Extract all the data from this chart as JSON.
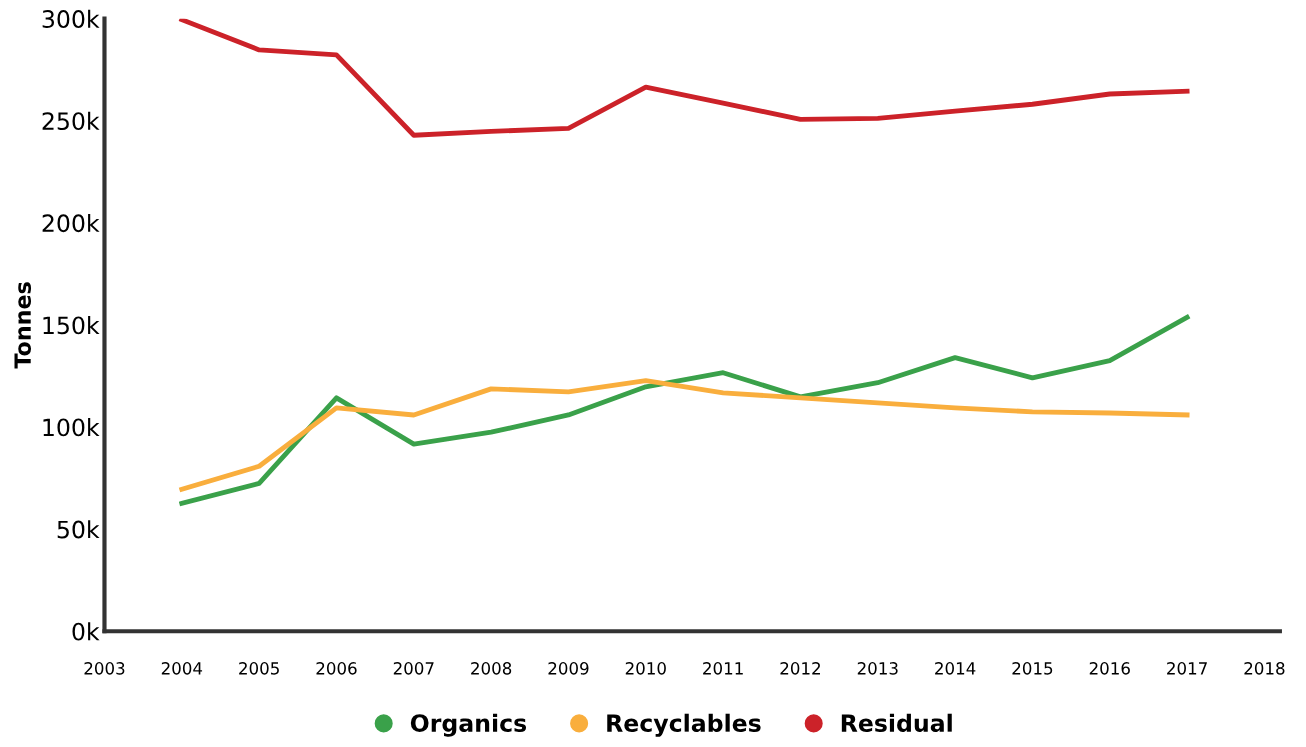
{
  "chart_data": {
    "type": "line",
    "ylabel": "Tonnes",
    "x": [
      2004,
      2005,
      2006,
      2007,
      2008,
      2009,
      2010,
      2011,
      2012,
      2013,
      2014,
      2015,
      2016,
      2017
    ],
    "series": [
      {
        "name": "Organics",
        "color": "#3aa14a",
        "values": [
          62.6,
          72.4,
          114.3,
          91.6,
          97.5,
          105.9,
          119.7,
          126.6,
          114.8,
          121.7,
          134,
          124.1,
          132.5,
          153.7
        ]
      },
      {
        "name": "Recyclables",
        "color": "#f9ae3d",
        "values": [
          69.5,
          80.8,
          109.4,
          105.9,
          118.7,
          117.2,
          122.7,
          116.7,
          114.3,
          111.8,
          109.4,
          107.4,
          106.9,
          105.9
        ]
      },
      {
        "name": "Residual",
        "color": "#cc2229",
        "values": [
          299.5,
          284.7,
          282.3,
          242.9,
          244.8,
          246.3,
          266.5,
          258.6,
          250.7,
          251.2,
          254.7,
          258.1,
          263.1,
          264.5
        ]
      }
    ],
    "xlim": [
      2003,
      2018.2
    ],
    "xticks": [
      2003,
      2004,
      2005,
      2006,
      2007,
      2008,
      2009,
      2010,
      2011,
      2012,
      2013,
      2014,
      2015,
      2016,
      2017,
      2018
    ],
    "ylim": [
      0,
      300
    ],
    "yticks": [
      {
        "value": 0,
        "label": "0k"
      },
      {
        "value": 50,
        "label": "50k"
      },
      {
        "value": 100,
        "label": "100k"
      },
      {
        "value": 150,
        "label": "150k"
      },
      {
        "value": 200,
        "label": "200k"
      },
      {
        "value": 250,
        "label": "250k"
      },
      {
        "value": 300,
        "label": "300k"
      }
    ],
    "grid": false,
    "legend": "bottom",
    "marker": "none",
    "line_style": "solid"
  }
}
